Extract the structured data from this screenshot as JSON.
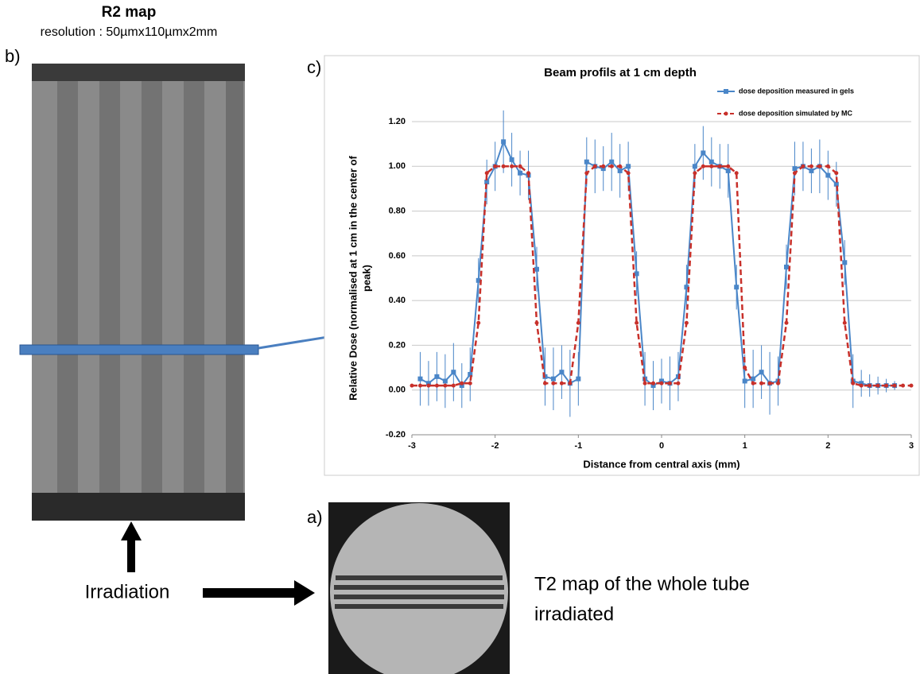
{
  "header": {
    "title": "R2 map",
    "subtitle": "resolution : 50µmx110µmx2mm"
  },
  "panels": {
    "b": "b)",
    "c": "c)",
    "a": "a)"
  },
  "captions": {
    "irradiation": "Irradiation",
    "t2_lines": [
      "T2 map of the whole tube",
      "irradiated"
    ]
  },
  "chart_data": {
    "type": "line",
    "title": "Beam profils at 1 cm depth",
    "xlabel": "Distance from central axis (mm)",
    "ylabel": [
      "Relative Dose (normalised at 1 cm in the center of",
      "peak)"
    ],
    "xlim": [
      -3,
      3
    ],
    "xticks": [
      -3,
      -2,
      -1,
      0,
      1,
      2,
      3
    ],
    "ylim": [
      -0.2,
      1.2
    ],
    "yticks": [
      {
        "value": -0.2,
        "label": "-0.20"
      },
      {
        "value": 0,
        "label": "0.00"
      },
      {
        "value": 0.2,
        "label": "0.20"
      },
      {
        "value": 0.4,
        "label": "0.40"
      },
      {
        "value": 0.6,
        "label": "0.60"
      },
      {
        "value": 0.8,
        "label": "0.80"
      },
      {
        "value": 1.0,
        "label": "1.00"
      },
      {
        "value": 1.2,
        "label": "1.20"
      }
    ],
    "grid": true,
    "legend": "top-right",
    "series": [
      {
        "name": "dose deposition measured in gels",
        "color": "#4a86c8",
        "x": [
          -2.9,
          -2.8,
          -2.7,
          -2.6,
          -2.5,
          -2.4,
          -2.3,
          -2.2,
          -2.1,
          -2.0,
          -1.9,
          -1.8,
          -1.7,
          -1.6,
          -1.5,
          -1.4,
          -1.3,
          -1.2,
          -1.1,
          -1.0,
          -0.9,
          -0.8,
          -0.7,
          -0.6,
          -0.5,
          -0.4,
          -0.3,
          -0.2,
          -0.1,
          0.0,
          0.1,
          0.2,
          0.3,
          0.4,
          0.5,
          0.6,
          0.7,
          0.8,
          0.9,
          1.0,
          1.1,
          1.2,
          1.3,
          1.4,
          1.5,
          1.6,
          1.7,
          1.8,
          1.9,
          2.0,
          2.1,
          2.2,
          2.3,
          2.4,
          2.5,
          2.6,
          2.7,
          2.8
        ],
        "values": [
          0.05,
          0.03,
          0.06,
          0.04,
          0.08,
          0.02,
          0.07,
          0.49,
          0.93,
          1.0,
          1.11,
          1.03,
          0.97,
          0.96,
          0.54,
          0.06,
          0.05,
          0.08,
          0.03,
          0.05,
          1.02,
          1.0,
          0.99,
          1.02,
          0.98,
          1.0,
          0.52,
          0.05,
          0.02,
          0.04,
          0.03,
          0.06,
          0.46,
          1.0,
          1.06,
          1.02,
          1.0,
          0.98,
          0.46,
          0.04,
          0.05,
          0.08,
          0.03,
          0.04,
          0.55,
          0.99,
          1.0,
          0.98,
          1.0,
          0.96,
          0.92,
          0.57,
          0.04,
          0.03,
          0.02,
          0.02,
          0.02,
          0.02
        ],
        "errors": [
          0.12,
          0.1,
          0.11,
          0.12,
          0.13,
          0.1,
          0.12,
          0.1,
          0.1,
          0.11,
          0.14,
          0.12,
          0.1,
          0.11,
          0.1,
          0.13,
          0.14,
          0.12,
          0.15,
          0.12,
          0.11,
          0.12,
          0.1,
          0.13,
          0.12,
          0.11,
          0.1,
          0.12,
          0.11,
          0.1,
          0.12,
          0.11,
          0.1,
          0.1,
          0.12,
          0.11,
          0.1,
          0.12,
          0.1,
          0.12,
          0.13,
          0.12,
          0.14,
          0.11,
          0.1,
          0.12,
          0.11,
          0.1,
          0.12,
          0.11,
          0.1,
          0.1,
          0.12,
          0.06,
          0.05,
          0.04,
          0.03,
          0.02
        ]
      },
      {
        "name": "dose deposition simulated by MC",
        "color": "#c8302a",
        "dashed": true,
        "x": [
          -3.0,
          -2.9,
          -2.8,
          -2.7,
          -2.6,
          -2.5,
          -2.4,
          -2.3,
          -2.2,
          -2.1,
          -2.0,
          -1.9,
          -1.8,
          -1.7,
          -1.6,
          -1.5,
          -1.4,
          -1.3,
          -1.2,
          -1.1,
          -1.0,
          -0.9,
          -0.8,
          -0.7,
          -0.6,
          -0.5,
          -0.4,
          -0.3,
          -0.2,
          -0.1,
          0.0,
          0.1,
          0.2,
          0.3,
          0.4,
          0.5,
          0.6,
          0.7,
          0.8,
          0.9,
          1.0,
          1.1,
          1.2,
          1.3,
          1.4,
          1.5,
          1.6,
          1.7,
          1.8,
          1.9,
          2.0,
          2.1,
          2.2,
          2.3,
          2.4,
          2.5,
          2.6,
          2.7,
          2.8,
          2.9,
          3.0
        ],
        "values": [
          0.02,
          0.02,
          0.02,
          0.02,
          0.02,
          0.02,
          0.03,
          0.03,
          0.3,
          0.97,
          1.0,
          1.0,
          1.0,
          1.0,
          0.97,
          0.3,
          0.03,
          0.03,
          0.03,
          0.03,
          0.3,
          0.97,
          1.0,
          1.0,
          1.0,
          1.0,
          0.97,
          0.3,
          0.03,
          0.03,
          0.03,
          0.03,
          0.03,
          0.3,
          0.97,
          1.0,
          1.0,
          1.0,
          1.0,
          0.97,
          0.1,
          0.03,
          0.03,
          0.03,
          0.03,
          0.3,
          0.97,
          1.0,
          1.0,
          1.0,
          1.0,
          0.97,
          0.3,
          0.03,
          0.02,
          0.02,
          0.02,
          0.02,
          0.02,
          0.02,
          0.02
        ]
      }
    ]
  }
}
